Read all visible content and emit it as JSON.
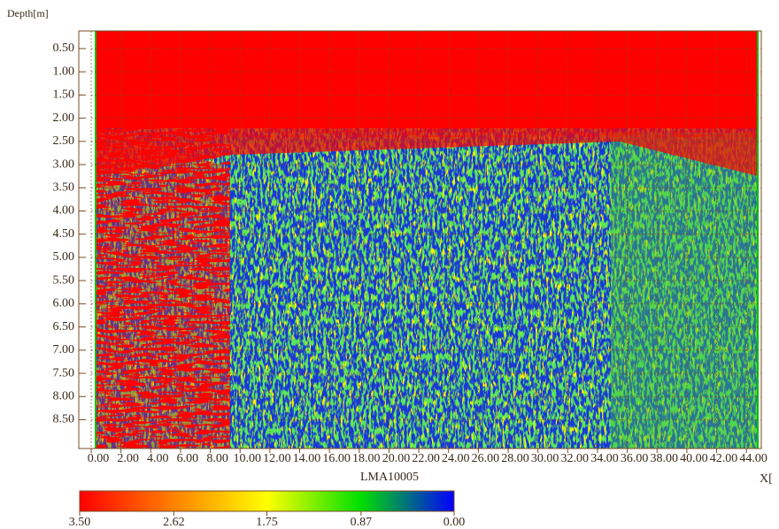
{
  "chart_data": {
    "type": "heatmap",
    "y_label": "Depth[m]",
    "x_label": "X[",
    "colorbar_label": "LMA10005",
    "xlim": [
      0,
      45
    ],
    "ylim": [
      0.12,
      9.12
    ],
    "xticks": [
      {
        "value": 0,
        "label": "0.00"
      },
      {
        "value": 2,
        "label": "2.00"
      },
      {
        "value": 4,
        "label": "4.00"
      },
      {
        "value": 6,
        "label": "6.00"
      },
      {
        "value": 8,
        "label": "8.00"
      },
      {
        "value": 10,
        "label": "10.00"
      },
      {
        "value": 12,
        "label": "12.00"
      },
      {
        "value": 14,
        "label": "14.00"
      },
      {
        "value": 16,
        "label": "16.00"
      },
      {
        "value": 18,
        "label": "18.00"
      },
      {
        "value": 20,
        "label": "20.00"
      },
      {
        "value": 22,
        "label": "22.00"
      },
      {
        "value": 24,
        "label": "24.00"
      },
      {
        "value": 26,
        "label": "26.00"
      },
      {
        "value": 28,
        "label": "28.00"
      },
      {
        "value": 30,
        "label": "30.00"
      },
      {
        "value": 32,
        "label": "32.00"
      },
      {
        "value": 34,
        "label": "34.00"
      },
      {
        "value": 36,
        "label": "36.00"
      },
      {
        "value": 38,
        "label": "38.00"
      },
      {
        "value": 40,
        "label": "40.00"
      },
      {
        "value": 42,
        "label": "42.00"
      },
      {
        "value": 44,
        "label": "44.00"
      }
    ],
    "yticks": [
      {
        "value": 0.5,
        "label": "0.50"
      },
      {
        "value": 1,
        "label": "1.00"
      },
      {
        "value": 1.5,
        "label": "1.50"
      },
      {
        "value": 2,
        "label": "2.00"
      },
      {
        "value": 2.5,
        "label": "2.50"
      },
      {
        "value": 3,
        "label": "3.00"
      },
      {
        "value": 3.5,
        "label": "3.50"
      },
      {
        "value": 4,
        "label": "4.00"
      },
      {
        "value": 4.5,
        "label": "4.50"
      },
      {
        "value": 5,
        "label": "5.00"
      },
      {
        "value": 5.5,
        "label": "5.50"
      },
      {
        "value": 6,
        "label": "6.00"
      },
      {
        "value": 6.5,
        "label": "6.50"
      },
      {
        "value": 7,
        "label": "7.00"
      },
      {
        "value": 7.5,
        "label": "7.50"
      },
      {
        "value": 8,
        "label": "8.00"
      },
      {
        "value": 8.5,
        "label": "8.50"
      }
    ],
    "colorbar_lim": [
      3.5,
      0
    ],
    "colorbar_ticks": [
      {
        "value": 3.5,
        "label": "3.50"
      },
      {
        "value": 2.62,
        "label": "2.62"
      },
      {
        "value": 1.75,
        "label": "1.75"
      },
      {
        "value": 0.87,
        "label": "0.87"
      },
      {
        "value": 0,
        "label": "0.00"
      }
    ],
    "colorbar_colors": [
      "#ff0000",
      "#ff8000",
      "#ffff00",
      "#00e000",
      "#0000ff"
    ],
    "grid": true
  }
}
